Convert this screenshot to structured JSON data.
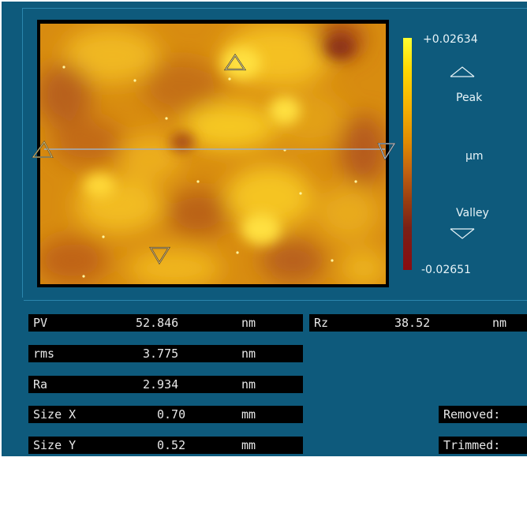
{
  "colorbar": {
    "max_label": "+0.02634",
    "min_label": "-0.02651",
    "peak_label": "Peak",
    "valley_label": "Valley",
    "unit_label": "µm"
  },
  "stats": [
    {
      "name": "PV",
      "value": "52.846",
      "unit": "nm"
    },
    {
      "name": "rms",
      "value": "3.775",
      "unit": "nm"
    },
    {
      "name": "Ra",
      "value": "2.934",
      "unit": "nm"
    },
    {
      "name": "Size X",
      "value": "0.70",
      "unit": "mm"
    },
    {
      "name": "Size Y",
      "value": "0.52",
      "unit": "mm"
    }
  ],
  "rz": {
    "name": "Rz",
    "value": "38.52",
    "unit": "nm"
  },
  "removed_label": "Removed:",
  "trimmed_label": "Trimmed:",
  "colors": {
    "panel_bg": "#0e5a7c",
    "cell_bg": "#000000",
    "cell_text": "#e8e8e8"
  }
}
